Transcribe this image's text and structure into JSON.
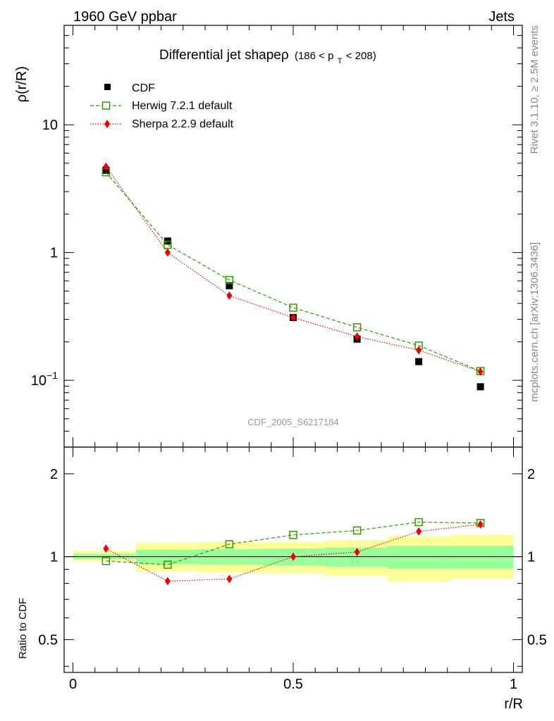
{
  "header": {
    "left": "1960 GeV ppbar",
    "right": "Jets"
  },
  "side_labels": {
    "rivet": "Rivet 3.1.10, ≥ 2.5M events",
    "mcplots": "mcplots.cern.ch [arXiv:1306.3436]"
  },
  "chart_data": [
    {
      "type": "scatter",
      "title_main": "Differential jet shapeρ",
      "title_sub": "(186 < p",
      "title_sub_index": "T",
      "title_sub_tail": " < 208)",
      "ylabel": "ρ(r/R)",
      "yscale": "log",
      "ylim": [
        0.03,
        60
      ],
      "xlim": [
        -0.02,
        1.02
      ],
      "y_ticks": [
        {
          "value": 10,
          "label": "10"
        },
        {
          "value": 1,
          "label": "1"
        },
        {
          "value": 0.1,
          "label": "10−1"
        }
      ],
      "watermark": "CDF_2005_S6217184",
      "legend_position": "top-left",
      "x": [
        0.075,
        0.215,
        0.355,
        0.5,
        0.645,
        0.785,
        0.925
      ],
      "series": [
        {
          "name": "CDF",
          "color": "#000000",
          "marker": "square-filled",
          "line": "none",
          "values": [
            4.4,
            1.23,
            0.55,
            0.31,
            0.21,
            0.14,
            0.089
          ]
        },
        {
          "name": "Herwig 7.2.1 default",
          "color": "#339900",
          "marker": "square-open",
          "line": "dashed",
          "values": [
            4.25,
            1.15,
            0.61,
            0.37,
            0.26,
            0.187,
            0.118
          ]
        },
        {
          "name": "Sherpa 2.2.9 default",
          "color": "#ee0000",
          "marker": "diamond",
          "line": "dotted",
          "values": [
            4.7,
            1.0,
            0.46,
            0.31,
            0.22,
            0.172,
            0.117
          ]
        }
      ]
    },
    {
      "type": "scatter",
      "ylabel": "Ratio to CDF",
      "xlabel": "r/R",
      "yscale": "log",
      "ylim": [
        0.38,
        2.5
      ],
      "xlim": [
        -0.02,
        1.02
      ],
      "y_ticks": [
        {
          "value": 2,
          "label": "2"
        },
        {
          "value": 1,
          "label": "1"
        },
        {
          "value": 0.5,
          "label": "0.5"
        }
      ],
      "x_ticks": [
        {
          "value": 0,
          "label": "0"
        },
        {
          "value": 0.5,
          "label": "0.5"
        },
        {
          "value": 1,
          "label": "1"
        }
      ],
      "bands": {
        "inner_color": "#99ff99",
        "outer_color": "#ffff99",
        "bins": [
          {
            "x0": 0.0,
            "x1": 0.143,
            "inner": [
              0.98,
              1.025
            ],
            "outer": [
              0.965,
              1.05
            ]
          },
          {
            "x0": 0.143,
            "x1": 0.286,
            "inner": [
              0.94,
              1.06
            ],
            "outer": [
              0.885,
              1.125
            ]
          },
          {
            "x0": 0.286,
            "x1": 0.429,
            "inner": [
              0.935,
              1.065
            ],
            "outer": [
              0.875,
              1.13
            ]
          },
          {
            "x0": 0.429,
            "x1": 0.571,
            "inner": [
              0.93,
              1.07
            ],
            "outer": [
              0.87,
              1.13
            ]
          },
          {
            "x0": 0.571,
            "x1": 0.714,
            "inner": [
              0.92,
              1.08
            ],
            "outer": [
              0.85,
              1.15
            ]
          },
          {
            "x0": 0.714,
            "x1": 0.857,
            "inner": [
              0.905,
              1.095
            ],
            "outer": [
              0.815,
              1.185
            ]
          },
          {
            "x0": 0.857,
            "x1": 1.0,
            "inner": [
              0.905,
              1.095
            ],
            "outer": [
              0.83,
              1.2
            ]
          }
        ]
      },
      "x": [
        0.075,
        0.215,
        0.355,
        0.5,
        0.645,
        0.785,
        0.925
      ],
      "series": [
        {
          "name": "Herwig 7.2.1 default",
          "color": "#339900",
          "marker": "square-open",
          "line": "dashed",
          "values": [
            0.965,
            0.935,
            1.11,
            1.2,
            1.245,
            1.335,
            1.325
          ]
        },
        {
          "name": "Sherpa 2.2.9 default",
          "color": "#ee0000",
          "marker": "diamond",
          "line": "dotted",
          "values": [
            1.07,
            0.815,
            0.83,
            1.0,
            1.04,
            1.235,
            1.31
          ]
        }
      ]
    }
  ]
}
